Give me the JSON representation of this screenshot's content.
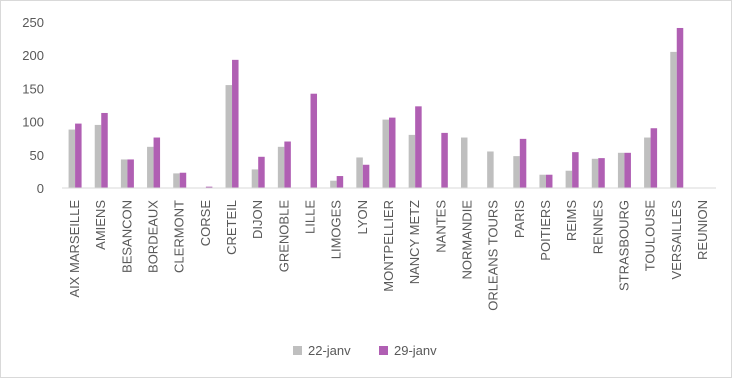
{
  "chart_data": {
    "type": "bar",
    "title": "",
    "xlabel": "",
    "ylabel": "",
    "ylim": [
      0,
      250
    ],
    "yticks": [
      0,
      50,
      100,
      150,
      200,
      250
    ],
    "grid": false,
    "legend_position": "bottom",
    "categories": [
      "AIX MARSEILLE",
      "AMIENS",
      "BESANCON",
      "BORDEAUX",
      "CLERMONT",
      "CORSE",
      "CRETEIL",
      "DIJON",
      "GRENOBLE",
      "LILLE",
      "LIMOGES",
      "LYON",
      "MONTPELLIER",
      "NANCY METZ",
      "NANTES",
      "NORMANDIE",
      "ORLEANS TOURS",
      "PARIS",
      "POITIERS",
      "REIMS",
      "RENNES",
      "STRASBOURG",
      "TOULOUSE",
      "VERSAILLES",
      "REUNION"
    ],
    "series": [
      {
        "name": "22-janv",
        "color": "#bfbfbf",
        "values": [
          88,
          95,
          43,
          62,
          22,
          0,
          155,
          28,
          62,
          0,
          11,
          46,
          103,
          80,
          0,
          76,
          55,
          48,
          20,
          26,
          44,
          53,
          76,
          205,
          0
        ]
      },
      {
        "name": "29-janv",
        "color": "#b05fb3",
        "values": [
          97,
          113,
          43,
          76,
          23,
          2,
          193,
          47,
          70,
          142,
          18,
          35,
          106,
          123,
          83,
          0,
          0,
          74,
          20,
          54,
          45,
          53,
          90,
          241,
          0
        ]
      }
    ]
  }
}
